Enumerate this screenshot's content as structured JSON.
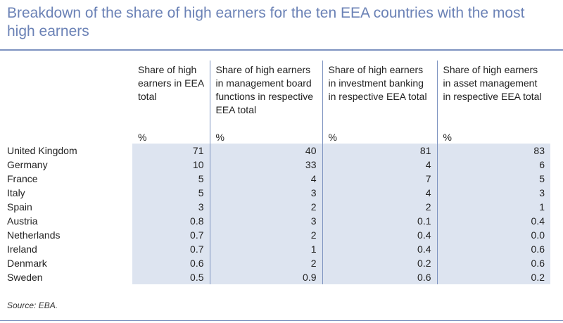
{
  "title": "Breakdown of the share of high earners for the ten EEA countries with the most high earners",
  "table": {
    "headers": [
      "Share of high earners in EEA total",
      "Share of high earners in management board functions in respective EEA total",
      "Share of high earners in investment banking in respective EEA total",
      "Share of high earners in asset management in respective EEA total"
    ],
    "units": [
      "%",
      "%",
      "%",
      "%"
    ],
    "rows": [
      {
        "country": "United Kingdom",
        "values": [
          "71",
          "40",
          "81",
          "83"
        ]
      },
      {
        "country": "Germany",
        "values": [
          "10",
          "33",
          "4",
          "6"
        ]
      },
      {
        "country": "France",
        "values": [
          "5",
          "4",
          "7",
          "5"
        ]
      },
      {
        "country": "Italy",
        "values": [
          "5",
          "3",
          "4",
          "3"
        ]
      },
      {
        "country": "Spain",
        "values": [
          "3",
          "2",
          "2",
          "1"
        ]
      },
      {
        "country": "Austria",
        "values": [
          "0.8",
          "3",
          "0.1",
          "0.4"
        ]
      },
      {
        "country": "Netherlands",
        "values": [
          "0.7",
          "2",
          "0.4",
          "0.0"
        ]
      },
      {
        "country": "Ireland",
        "values": [
          "0.7",
          "1",
          "0.4",
          "0.6"
        ]
      },
      {
        "country": "Denmark",
        "values": [
          "0.6",
          "2",
          "0.2",
          "0.6"
        ]
      },
      {
        "country": "Sweden",
        "values": [
          "0.5",
          "0.9",
          "0.6",
          "0.2"
        ]
      }
    ]
  },
  "source": "Source: EBA.",
  "colors": {
    "title": "#6b82b6",
    "rule": "#7d93c0",
    "cell_shade": "#dde4f0"
  }
}
